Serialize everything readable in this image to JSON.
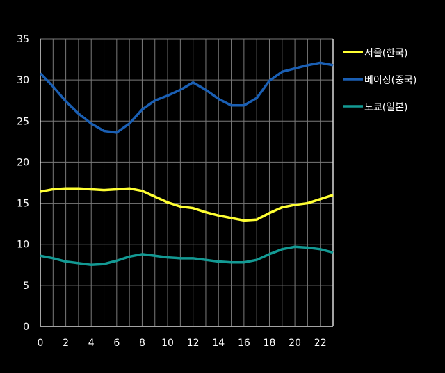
{
  "chart_data": {
    "type": "line",
    "title": "",
    "xlabel": "",
    "ylabel": "",
    "x": [
      0,
      1,
      2,
      3,
      4,
      5,
      6,
      7,
      8,
      9,
      10,
      11,
      12,
      13,
      14,
      15,
      16,
      17,
      18,
      19,
      20,
      21,
      22,
      23
    ],
    "xlim": [
      0,
      23
    ],
    "ylim": [
      0,
      35
    ],
    "x_ticks": [
      "0",
      "2",
      "4",
      "6",
      "8",
      "10",
      "12",
      "14",
      "16",
      "18",
      "20",
      "22"
    ],
    "y_ticks": [
      "0",
      "5",
      "10",
      "15",
      "20",
      "25",
      "30",
      "35"
    ],
    "grid": true,
    "legend_position": "right",
    "series": [
      {
        "name": "서울(한국)",
        "color": "#ffff33",
        "values": [
          16.4,
          16.7,
          16.8,
          16.8,
          16.7,
          16.6,
          16.7,
          16.8,
          16.5,
          15.8,
          15.1,
          14.6,
          14.4,
          13.9,
          13.5,
          13.2,
          12.9,
          13.0,
          13.8,
          14.5,
          14.8,
          15.0,
          15.5,
          16.0
        ]
      },
      {
        "name": "베이징(중국)",
        "color": "#1a5fb4",
        "values": [
          30.8,
          29.2,
          27.4,
          25.9,
          24.7,
          23.8,
          23.6,
          24.7,
          26.4,
          27.5,
          28.1,
          28.8,
          29.7,
          28.8,
          27.7,
          26.9,
          26.9,
          27.8,
          29.9,
          31.0,
          31.4,
          31.8,
          32.1,
          31.8
        ]
      },
      {
        "name": "도쿄(일본)",
        "color": "#139a94",
        "values": [
          8.6,
          8.3,
          7.9,
          7.7,
          7.5,
          7.6,
          8.0,
          8.5,
          8.8,
          8.6,
          8.4,
          8.3,
          8.3,
          8.1,
          7.9,
          7.8,
          7.8,
          8.1,
          8.8,
          9.4,
          9.7,
          9.6,
          9.4,
          9.0
        ]
      }
    ]
  }
}
